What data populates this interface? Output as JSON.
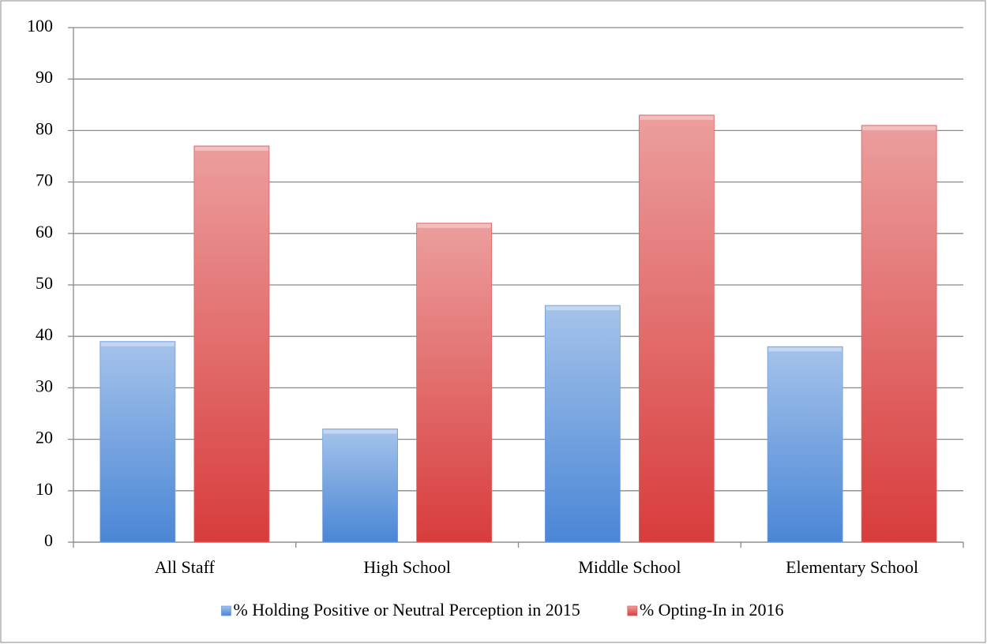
{
  "chart_data": {
    "type": "bar",
    "categories": [
      "All Staff",
      "High School",
      "Middle School",
      "Elementary School"
    ],
    "series": [
      {
        "name": "% Holding Positive or Neutral Perception in 2015",
        "color": "#4a86d6",
        "values": [
          39,
          22,
          46,
          38
        ]
      },
      {
        "name": "% Opting-In in 2016",
        "color": "#d83c3c",
        "values": [
          77,
          62,
          83,
          81
        ]
      }
    ],
    "ylim": [
      0,
      100
    ],
    "yticks": [
      0,
      10,
      20,
      30,
      40,
      50,
      60,
      70,
      80,
      90,
      100
    ],
    "grid": true,
    "legend": "bottom"
  }
}
